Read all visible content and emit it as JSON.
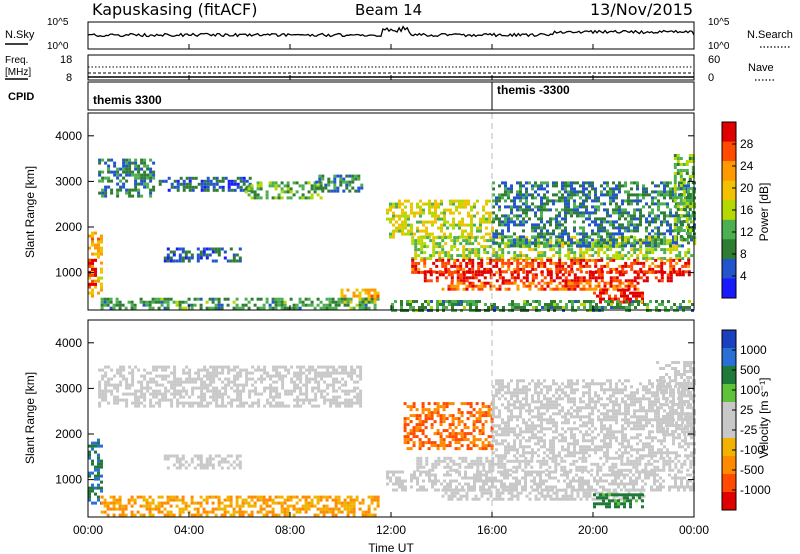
{
  "header": {
    "station": "Kapuskasing (fitACF)",
    "beam": "Beam 14",
    "date": "13/Nov/2015"
  },
  "noise_panel": {
    "left_label": "N.Sky",
    "left_ticks": [
      "10^5",
      "10^0"
    ],
    "right_label": "N.Search",
    "right_ticks": [
      "10^5",
      "10^0"
    ]
  },
  "freq_panel": {
    "left_label_line1": "Freq.",
    "left_label_line2": "[MHz]",
    "left_ticks": [
      "18",
      "8"
    ],
    "right_label": "Nave",
    "right_ticks": [
      "60",
      "0"
    ]
  },
  "cpid_panel": {
    "label": "CPID",
    "segments": [
      "themis 3300",
      "themis -3300"
    ]
  },
  "x_axis": {
    "label": "Time UT",
    "ticks": [
      "00:00",
      "04:00",
      "08:00",
      "12:00",
      "16:00",
      "20:00",
      "00:00"
    ]
  },
  "power_colorbar": {
    "label": "Power [dB]",
    "ticks": [
      "28",
      "24",
      "20",
      "16",
      "12",
      "8",
      "4"
    ]
  },
  "velocity_colorbar": {
    "label": "Velocity [m s⁻¹]",
    "ticks": [
      "1000",
      "500",
      "100",
      "25",
      "-25",
      "-100",
      "-500",
      "-1000"
    ]
  },
  "chart_data": [
    {
      "type": "heatmap",
      "title": "",
      "xlabel": "",
      "ylabel": "Slant Range [km]",
      "xlim": [
        0,
        24
      ],
      "ylim": [
        180,
        4500
      ],
      "yticks": [
        1000,
        2000,
        3000,
        4000
      ],
      "colorbar": "Power [dB]",
      "zlim": [
        0,
        30
      ],
      "colors": [
        "#1a1aff",
        "#2255cc",
        "#2e7d32",
        "#4caf50",
        "#b5d900",
        "#f2c200",
        "#ff9900",
        "#ff4a00",
        "#e00000"
      ],
      "regions": [
        {
          "t": [
            0.0,
            0.5
          ],
          "r": [
            500,
            1900
          ],
          "power": 20
        },
        {
          "t": [
            0.0,
            0.3
          ],
          "r": [
            750,
            1300
          ],
          "power": 28
        },
        {
          "t": [
            0.4,
            2.6
          ],
          "r": [
            2650,
            3500
          ],
          "power": 8
        },
        {
          "t": [
            2.8,
            6.4
          ],
          "r": [
            2800,
            3100
          ],
          "power": 6
        },
        {
          "t": [
            6.2,
            9.2
          ],
          "r": [
            2650,
            3000
          ],
          "power": 12
        },
        {
          "t": [
            9.0,
            10.8
          ],
          "r": [
            2800,
            3150
          ],
          "power": 8
        },
        {
          "t": [
            3.0,
            6.0
          ],
          "r": [
            1250,
            1550
          ],
          "power": 6
        },
        {
          "t": [
            10.0,
            11.5
          ],
          "r": [
            350,
            650
          ],
          "power": 20
        },
        {
          "t": [
            0.5,
            11.5
          ],
          "r": [
            200,
            450
          ],
          "power": 10
        },
        {
          "t": [
            11.8,
            16.0
          ],
          "r": [
            1800,
            2600
          ],
          "power": 16
        },
        {
          "t": [
            12.8,
            24.0
          ],
          "r": [
            1300,
            1800
          ],
          "power": 14
        },
        {
          "t": [
            12.8,
            23.8
          ],
          "r": [
            1000,
            1300
          ],
          "power": 26
        },
        {
          "t": [
            13.3,
            23.8
          ],
          "r": [
            850,
            1050
          ],
          "power": 28
        },
        {
          "t": [
            14.0,
            21.8
          ],
          "r": [
            650,
            800
          ],
          "power": 24
        },
        {
          "t": [
            20.0,
            22.0
          ],
          "r": [
            350,
            650
          ],
          "power": 28
        },
        {
          "t": [
            16.0,
            24.0
          ],
          "r": [
            1600,
            3000
          ],
          "power": 8
        },
        {
          "t": [
            23.2,
            24.0
          ],
          "r": [
            1700,
            3600
          ],
          "power": 12
        },
        {
          "t": [
            12.0,
            24.0
          ],
          "r": [
            200,
            400
          ],
          "power": 10
        }
      ]
    },
    {
      "type": "heatmap",
      "title": "",
      "xlabel": "Time UT",
      "ylabel": "Slant Range [km]",
      "xlim": [
        0,
        24
      ],
      "ylim": [
        180,
        4500
      ],
      "yticks": [
        1000,
        2000,
        3000,
        4000
      ],
      "colorbar": "Velocity [m s⁻¹]",
      "zlim": [
        -1000,
        1000
      ],
      "colors": [
        "#1a3fbf",
        "#2a6fd6",
        "#1f7a3a",
        "#5fc23a",
        "#c8c8c8",
        "#c8c8c8",
        "#f2b200",
        "#ff8a00",
        "#ff4a00",
        "#e00000"
      ],
      "regions": [
        {
          "t": [
            0.0,
            0.5
          ],
          "r": [
            500,
            1900
          ],
          "velocity": 300
        },
        {
          "t": [
            0.4,
            10.8
          ],
          "r": [
            2600,
            3500
          ],
          "velocity": 0
        },
        {
          "t": [
            3.0,
            6.0
          ],
          "r": [
            1250,
            1550
          ],
          "velocity": 0
        },
        {
          "t": [
            0.5,
            11.5
          ],
          "r": [
            200,
            650
          ],
          "velocity": -60
        },
        {
          "t": [
            12.5,
            16.0
          ],
          "r": [
            1700,
            2700
          ],
          "velocity": -300
        },
        {
          "t": [
            13.0,
            24.0
          ],
          "r": [
            1200,
            1500
          ],
          "velocity": 0
        },
        {
          "t": [
            11.8,
            24.0
          ],
          "r": [
            800,
            1200
          ],
          "velocity": 0
        },
        {
          "t": [
            14.0,
            22.0
          ],
          "r": [
            600,
            800
          ],
          "velocity": 0
        },
        {
          "t": [
            20.0,
            22.0
          ],
          "r": [
            400,
            700
          ],
          "velocity": 80
        },
        {
          "t": [
            16.0,
            24.0
          ],
          "r": [
            1500,
            3200
          ],
          "velocity": 0
        },
        {
          "t": [
            22.5,
            24.0
          ],
          "r": [
            2000,
            3600
          ],
          "velocity": 0
        }
      ]
    }
  ]
}
